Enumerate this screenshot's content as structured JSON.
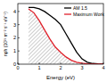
{
  "chart_data": {
    "type": "line",
    "x_label": "Energy (eV)",
    "y_label": "nph (10²¹ m⁻² s⁻¹ eV⁻¹)",
    "x": [
      0.5,
      0.75,
      1,
      1.25,
      1.5,
      1.75,
      2,
      2.25,
      2.5,
      2.75,
      3,
      3.25,
      3.5,
      3.75,
      4
    ],
    "series": [
      {
        "name": "AM 1.5",
        "color": "#000000",
        "values": [
          4.3,
          4.3,
          4.2,
          4.0,
          3.7,
          3.4,
          3.0,
          2.3,
          1.6,
          0.9,
          0.4,
          0.15,
          0.05,
          0.02,
          0
        ]
      },
      {
        "name": "Maximum Work",
        "color": "#e0202a",
        "type": "area",
        "values": [
          4.2,
          3.9,
          3.3,
          2.6,
          1.9,
          1.3,
          0.9,
          0.55,
          0.3,
          0.15,
          0.07,
          0.03,
          0.01,
          0,
          0
        ]
      }
    ],
    "xlim": [
      0,
      4
    ],
    "xticks": [
      0,
      1,
      2,
      3,
      4
    ],
    "ylim": [
      0,
      4.6
    ],
    "yticks": [
      0,
      1,
      2,
      3,
      4
    ],
    "legend": "upper right"
  }
}
